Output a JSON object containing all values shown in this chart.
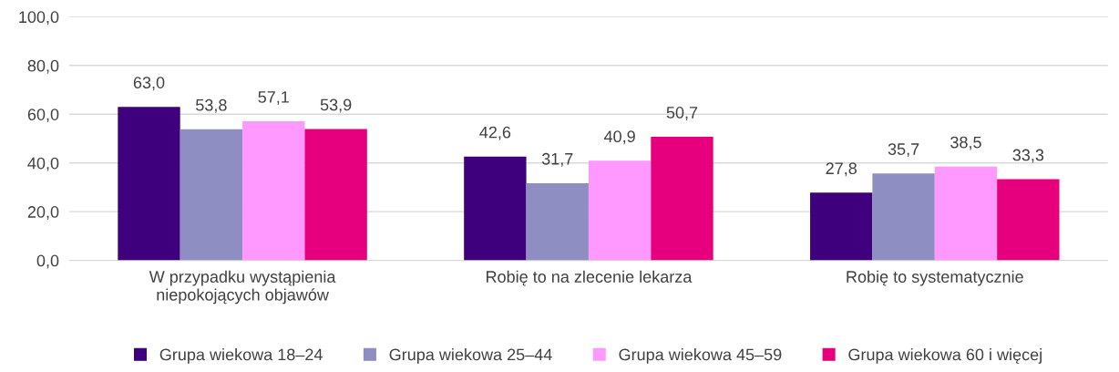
{
  "chart_data": {
    "type": "bar",
    "categories": [
      "W przypadku wystąpienia\nniepokojących objawów",
      "Robię to na zlecenie lekarza",
      "Robię to systematycznie"
    ],
    "series": [
      {
        "name": "Grupa wiekowa 18–24",
        "color": "#3f007d",
        "values": [
          63.0,
          42.6,
          27.8
        ],
        "value_labels": [
          "63,0",
          "42,6",
          "27,8"
        ]
      },
      {
        "name": "Grupa wiekowa 25–44",
        "color": "#8e8ec2",
        "values": [
          53.8,
          31.7,
          35.7
        ],
        "value_labels": [
          "53,8",
          "31,7",
          "35,7"
        ]
      },
      {
        "name": "Grupa wiekowa 45–59",
        "color": "#ff99ff",
        "values": [
          57.1,
          40.9,
          38.5
        ],
        "value_labels": [
          "57,1",
          "40,9",
          "38,5"
        ]
      },
      {
        "name": "Grupa wiekowa 60 i więcej",
        "color": "#e6007e",
        "values": [
          53.9,
          50.7,
          33.3
        ],
        "value_labels": [
          "53,9",
          "50,7",
          "33,3"
        ]
      }
    ],
    "ylim": [
      0,
      100
    ],
    "yticks": [
      {
        "value": 0,
        "label": "0,0"
      },
      {
        "value": 20,
        "label": "20,0"
      },
      {
        "value": 40,
        "label": "40,0"
      },
      {
        "value": 60,
        "label": "60,0"
      },
      {
        "value": 80,
        "label": "80,0"
      },
      {
        "value": 100,
        "label": "100,0"
      }
    ],
    "grid": "y",
    "legend": "bottom"
  }
}
